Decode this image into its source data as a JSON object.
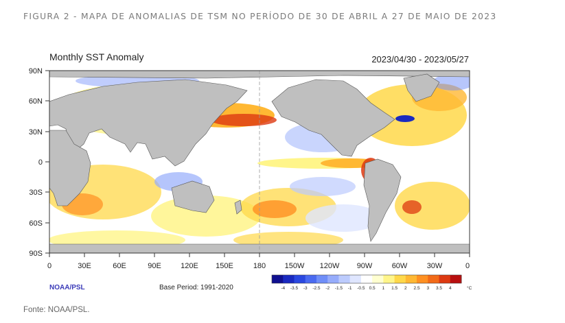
{
  "caption": "FIGURA 2 - MAPA DE ANOMALIAS DE TSM NO PERÍODO DE 30 DE ABRIL A 27 DE MAIO DE 2023",
  "source": "Fonte: NOAA/PSL.",
  "map": {
    "title": "Monthly SST Anomaly",
    "date_range": "2023/04/30 - 2023/05/27",
    "lat_labels": [
      "90N",
      "60N",
      "30N",
      "0",
      "30S",
      "60S",
      "90S"
    ],
    "lon_labels": [
      "0",
      "30E",
      "60E",
      "90E",
      "120E",
      "150E",
      "180",
      "150W",
      "120W",
      "90W",
      "60W",
      "30W",
      "0"
    ],
    "credit": "NOAA/PSL",
    "base_period": "Base Period: 1991-2020",
    "legend": {
      "tick_labels": [
        "-4",
        "-3.5",
        "-3",
        "-2.5",
        "-2",
        "-1.5",
        "-1",
        "-0.5",
        "0.5",
        "1",
        "1.5",
        "2",
        "2.5",
        "3",
        "3.5",
        "4"
      ],
      "unit": "°C",
      "colors": [
        "#101090",
        "#1a2ac0",
        "#2a48e0",
        "#4a6af0",
        "#6f8ef8",
        "#96acfb",
        "#bccbfd",
        "#dfe6ff",
        "#ffffff",
        "#ffffd0",
        "#fff58a",
        "#ffd84a",
        "#ffb833",
        "#ff9022",
        "#f26a18",
        "#dd3a12",
        "#b80f0f"
      ]
    }
  }
}
